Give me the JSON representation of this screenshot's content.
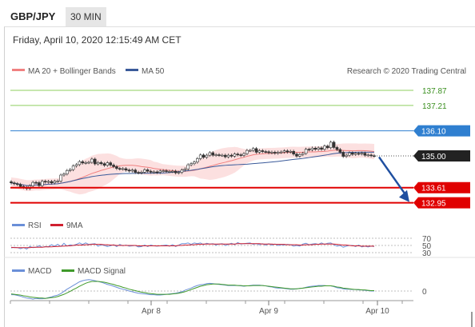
{
  "header": {
    "pair": "GBP/JPY",
    "timeframe": "30 MIN",
    "datetime": "Friday, April 10, 2020 12:15:49 AM CET"
  },
  "legend": {
    "ma20": "MA 20 + Bollinger Bands",
    "ma50": "MA 50",
    "copyright": "Research © 2020 Trading Central",
    "rsi": "RSI",
    "rsi_ma": "9MA",
    "macd": "MACD",
    "macd_signal": "MACD Signal"
  },
  "colors": {
    "ma20": "#f08080",
    "ma50": "#3a5a9a",
    "resistance_green": "#8fcf5f",
    "resistance_text": "#3a8f1f",
    "pivot_blue": "#2f7fd0",
    "support_red": "#e00000",
    "last_price": "#222222",
    "rsi": "#6a8fd8",
    "rsi_ma": "#d02030",
    "macd": "#6a8fd8",
    "macd_signal": "#3f9a2a",
    "bands_fill": "#fbd5d5",
    "arrow": "#1f4fa0"
  },
  "chart_data": [
    {
      "type": "candlestick",
      "title": "GBP/JPY",
      "x_ticks": [
        "Apr 8",
        "Apr 9",
        "Apr 10"
      ],
      "levels": [
        {
          "label": "137.87",
          "value": 137.87,
          "role": "resistance"
        },
        {
          "label": "137.21",
          "value": 137.21,
          "role": "resistance"
        },
        {
          "label": "136.10",
          "value": 136.1,
          "role": "pivot"
        },
        {
          "label": "135.00",
          "value": 135.0,
          "role": "last"
        },
        {
          "label": "133.61",
          "value": 133.61,
          "role": "support"
        },
        {
          "label": "132.95",
          "value": 132.95,
          "role": "support"
        }
      ],
      "ylim": [
        132.55,
        138.5
      ],
      "close": [
        133.82,
        133.78,
        133.75,
        133.66,
        133.62,
        133.57,
        133.69,
        133.84,
        133.83,
        133.7,
        133.89,
        133.86,
        133.88,
        133.82,
        133.89,
        133.9,
        134.16,
        134.21,
        134.36,
        134.4,
        134.56,
        134.62,
        134.75,
        134.69,
        134.71,
        134.72,
        134.86,
        134.65,
        134.71,
        134.66,
        134.59,
        134.7,
        134.6,
        134.53,
        134.45,
        134.43,
        134.44,
        134.38,
        134.34,
        134.38,
        134.28,
        134.26,
        134.29,
        134.39,
        134.33,
        134.29,
        134.3,
        134.28,
        134.34,
        134.35,
        134.32,
        134.32,
        134.33,
        134.26,
        134.28,
        134.38,
        134.43,
        134.61,
        134.66,
        134.73,
        134.88,
        135.04,
        134.94,
        135.03,
        135.14,
        135.03,
        135.05,
        135.03,
        135.03,
        134.96,
        135.03,
        134.99,
        135.08,
        135.05,
        135.02,
        135.1,
        135.24,
        135.24,
        135.32,
        135.16,
        135.23,
        135.19,
        135.18,
        135.14,
        135.16,
        135.12,
        135.16,
        135.17,
        135.22,
        135.17,
        135.2,
        135.08,
        134.99,
        135.06,
        135.11,
        135.29,
        135.27,
        135.34,
        135.29,
        135.35,
        135.29,
        135.43,
        135.36,
        135.6,
        135.37,
        135.28,
        135.16,
        134.98,
        135.03,
        135.13,
        135.07,
        135.11,
        135.09,
        135.12,
        135.03,
        135.04,
        135.01,
        135.0
      ]
    },
    {
      "type": "line",
      "title": "RSI",
      "ylim": [
        30,
        70
      ],
      "y_ticks": [
        70,
        50,
        30
      ],
      "series": [
        {
          "name": "RSI",
          "values": [
            43,
            45,
            44,
            41,
            44,
            40,
            47,
            44,
            45,
            49,
            45,
            47,
            46,
            52,
            48,
            53,
            47,
            56,
            48,
            52,
            50,
            53,
            57,
            53,
            57,
            53,
            54,
            55,
            48,
            52,
            50,
            47,
            49,
            52,
            47,
            53,
            49,
            51,
            48,
            49,
            50,
            46,
            47,
            51,
            47,
            51,
            49,
            48,
            49,
            50,
            51,
            48,
            52,
            47,
            51,
            55,
            55,
            57,
            53,
            57,
            55,
            57,
            52,
            56,
            54,
            55,
            51,
            54,
            55,
            50,
            53,
            56,
            52,
            58,
            54,
            55,
            56,
            57,
            53,
            55,
            52,
            55,
            51,
            55,
            51,
            54,
            50,
            52,
            51,
            53,
            52,
            48,
            50,
            48,
            54,
            56,
            52,
            54,
            55,
            53,
            57,
            53,
            56,
            57,
            52,
            48,
            50,
            45,
            48,
            50,
            50,
            47,
            51,
            46,
            48,
            46,
            48,
            47
          ]
        },
        {
          "name": "9MA",
          "values": [
            45,
            44,
            44,
            44,
            44,
            44,
            44,
            45,
            45,
            45,
            45,
            46,
            46,
            46,
            47,
            47,
            48,
            48,
            49,
            49,
            50,
            51,
            51,
            51,
            52,
            52,
            53,
            53,
            53,
            53,
            52,
            52,
            51,
            51,
            50,
            50,
            50,
            50,
            50,
            50,
            50,
            49,
            49,
            49,
            49,
            49,
            49,
            49,
            49,
            49,
            49,
            49,
            49,
            49,
            50,
            50,
            51,
            51,
            52,
            52,
            53,
            53,
            54,
            54,
            54,
            54,
            54,
            54,
            54,
            54,
            54,
            54,
            54,
            55,
            55,
            55,
            55,
            55,
            55,
            55,
            55,
            54,
            54,
            54,
            54,
            53,
            53,
            53,
            53,
            52,
            52,
            52,
            52,
            51,
            51,
            52,
            52,
            52,
            53,
            53,
            54,
            54,
            54,
            54,
            54,
            53,
            52,
            51,
            51,
            50,
            49,
            49,
            49,
            48,
            48,
            48,
            48,
            48
          ]
        }
      ]
    },
    {
      "type": "line",
      "title": "MACD",
      "y_ticks": [
        0
      ],
      "series": [
        {
          "name": "MACD",
          "values": [
            -0.1,
            -0.1,
            -0.12,
            -0.14,
            -0.17,
            -0.19,
            -0.2,
            -0.22,
            -0.2,
            -0.21,
            -0.21,
            -0.2,
            -0.18,
            -0.16,
            -0.13,
            -0.11,
            -0.07,
            -0.01,
            0.05,
            0.1,
            0.15,
            0.2,
            0.25,
            0.28,
            0.3,
            0.31,
            0.3,
            0.28,
            0.26,
            0.24,
            0.21,
            0.18,
            0.16,
            0.13,
            0.1,
            0.07,
            0.05,
            0.03,
            0.0,
            -0.02,
            -0.04,
            -0.06,
            -0.07,
            -0.08,
            -0.09,
            -0.1,
            -0.1,
            -0.11,
            -0.11,
            -0.1,
            -0.09,
            -0.08,
            -0.07,
            -0.06,
            -0.04,
            -0.02,
            0.02,
            0.05,
            0.08,
            0.12,
            0.15,
            0.17,
            0.18,
            0.2,
            0.21,
            0.2,
            0.19,
            0.18,
            0.17,
            0.16,
            0.15,
            0.15,
            0.15,
            0.15,
            0.14,
            0.13,
            0.14,
            0.15,
            0.16,
            0.16,
            0.16,
            0.15,
            0.14,
            0.12,
            0.11,
            0.09,
            0.08,
            0.08,
            0.07,
            0.06,
            0.05,
            0.05,
            0.06,
            0.07,
            0.08,
            0.1,
            0.12,
            0.13,
            0.14,
            0.15,
            0.15,
            0.15,
            0.14,
            0.14,
            0.12,
            0.09,
            0.08,
            0.06,
            0.05,
            0.05,
            0.04,
            0.04,
            0.03,
            0.03,
            0.02,
            0.01,
            0.0,
            0.0
          ]
        },
        {
          "name": "MACD Signal",
          "values": [
            -0.08,
            -0.09,
            -0.1,
            -0.11,
            -0.13,
            -0.14,
            -0.16,
            -0.17,
            -0.18,
            -0.19,
            -0.19,
            -0.2,
            -0.19,
            -0.18,
            -0.17,
            -0.15,
            -0.12,
            -0.09,
            -0.05,
            -0.01,
            0.04,
            0.08,
            0.13,
            0.17,
            0.21,
            0.24,
            0.26,
            0.26,
            0.26,
            0.25,
            0.24,
            0.22,
            0.2,
            0.18,
            0.15,
            0.13,
            0.1,
            0.08,
            0.05,
            0.03,
            0.01,
            -0.01,
            -0.03,
            -0.04,
            -0.06,
            -0.07,
            -0.08,
            -0.09,
            -0.09,
            -0.09,
            -0.09,
            -0.09,
            -0.08,
            -0.07,
            -0.06,
            -0.04,
            -0.02,
            0.01,
            0.04,
            0.07,
            0.1,
            0.13,
            0.15,
            0.17,
            0.18,
            0.19,
            0.19,
            0.19,
            0.18,
            0.17,
            0.16,
            0.16,
            0.16,
            0.15,
            0.15,
            0.14,
            0.14,
            0.14,
            0.15,
            0.15,
            0.15,
            0.15,
            0.14,
            0.13,
            0.12,
            0.11,
            0.1,
            0.09,
            0.08,
            0.07,
            0.06,
            0.06,
            0.06,
            0.07,
            0.08,
            0.09,
            0.1,
            0.11,
            0.12,
            0.13,
            0.13,
            0.14,
            0.14,
            0.14,
            0.13,
            0.11,
            0.1,
            0.08,
            0.07,
            0.06,
            0.05,
            0.04,
            0.04,
            0.03,
            0.03,
            0.02,
            0.01,
            0.01
          ]
        }
      ]
    }
  ]
}
